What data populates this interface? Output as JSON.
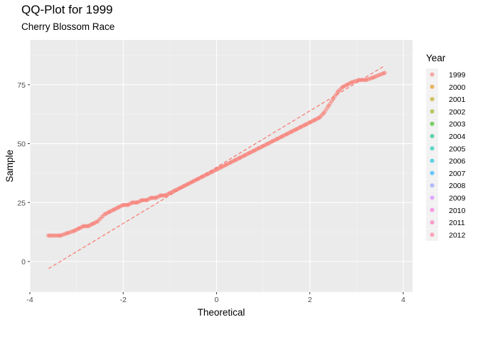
{
  "chart_data": {
    "type": "scatter",
    "title": "QQ-Plot for 1999",
    "subtitle": "Cherry Blossom Race",
    "xlabel": "Theoretical",
    "ylabel": "Sample",
    "xlim": [
      -4.0,
      4.2
    ],
    "ylim": [
      -13,
      94
    ],
    "xticks": [
      -4,
      -2,
      0,
      2,
      4
    ],
    "xtick_labels": [
      "-4",
      "-2",
      "0",
      "2",
      "4"
    ],
    "yticks": [
      0,
      25,
      50,
      75
    ],
    "ytick_labels": [
      "0",
      "25",
      "50",
      "75"
    ],
    "grid": true,
    "legend": {
      "title": "Year",
      "placement": "right",
      "entries": [
        {
          "label": "1999",
          "color": "#F8766D"
        },
        {
          "label": "2000",
          "color": "#E18A00"
        },
        {
          "label": "2001",
          "color": "#BE9C00"
        },
        {
          "label": "2002",
          "color": "#8CAB00"
        },
        {
          "label": "2003",
          "color": "#24B700"
        },
        {
          "label": "2004",
          "color": "#00BE70"
        },
        {
          "label": "2005",
          "color": "#00C1AB"
        },
        {
          "label": "2006",
          "color": "#00BBDA"
        },
        {
          "label": "2007",
          "color": "#00ACFC"
        },
        {
          "label": "2008",
          "color": "#8B93FF"
        },
        {
          "label": "2009",
          "color": "#D575FE"
        },
        {
          "label": "2010",
          "color": "#F962DD"
        },
        {
          "label": "2011",
          "color": "#FF65AC"
        },
        {
          "label": "2012",
          "color": "#FF6C91"
        }
      ]
    },
    "series": [
      {
        "name": "1999",
        "color": "#F8766D",
        "points": [
          [
            -3.6,
            11
          ],
          [
            -3.35,
            11
          ],
          [
            -3.2,
            12
          ],
          [
            -3.05,
            13
          ],
          [
            -2.95,
            14
          ],
          [
            -2.85,
            15
          ],
          [
            -2.75,
            15
          ],
          [
            -2.65,
            16
          ],
          [
            -2.55,
            17
          ],
          [
            -2.5,
            18
          ],
          [
            -2.45,
            19
          ],
          [
            -2.4,
            20
          ],
          [
            -2.3,
            21
          ],
          [
            -2.2,
            22
          ],
          [
            -2.1,
            23
          ],
          [
            -2.0,
            24
          ],
          [
            -1.9,
            24
          ],
          [
            -1.8,
            25
          ],
          [
            -1.7,
            25
          ],
          [
            -1.6,
            26
          ],
          [
            -1.5,
            26
          ],
          [
            -1.4,
            27
          ],
          [
            -1.3,
            27
          ],
          [
            -1.2,
            28
          ],
          [
            -1.1,
            28
          ],
          [
            -1.0,
            29
          ],
          [
            -0.9,
            30
          ],
          [
            -0.8,
            31
          ],
          [
            -0.7,
            32
          ],
          [
            -0.6,
            33
          ],
          [
            -0.5,
            34
          ],
          [
            -0.4,
            35
          ],
          [
            -0.3,
            36
          ],
          [
            -0.2,
            37
          ],
          [
            -0.1,
            38
          ],
          [
            0.0,
            39
          ],
          [
            0.1,
            40
          ],
          [
            0.2,
            41
          ],
          [
            0.3,
            42
          ],
          [
            0.4,
            43
          ],
          [
            0.5,
            44
          ],
          [
            0.6,
            45
          ],
          [
            0.7,
            46
          ],
          [
            0.8,
            47
          ],
          [
            0.9,
            48
          ],
          [
            1.0,
            49
          ],
          [
            1.1,
            50
          ],
          [
            1.2,
            51
          ],
          [
            1.3,
            52
          ],
          [
            1.4,
            53
          ],
          [
            1.5,
            54
          ],
          [
            1.6,
            55
          ],
          [
            1.7,
            56
          ],
          [
            1.8,
            57
          ],
          [
            1.9,
            58
          ],
          [
            2.0,
            59
          ],
          [
            2.1,
            60
          ],
          [
            2.2,
            61
          ],
          [
            2.3,
            63
          ],
          [
            2.4,
            66
          ],
          [
            2.5,
            69
          ],
          [
            2.6,
            72
          ],
          [
            2.7,
            74
          ],
          [
            2.8,
            75
          ],
          [
            2.9,
            76
          ],
          [
            3.05,
            77
          ],
          [
            3.2,
            77
          ],
          [
            3.35,
            78
          ],
          [
            3.6,
            80
          ]
        ]
      }
    ],
    "reference_line": {
      "style": "dashed",
      "color": "#F8766D",
      "points": [
        [
          -3.6,
          -3
        ],
        [
          3.6,
          83
        ]
      ]
    }
  }
}
